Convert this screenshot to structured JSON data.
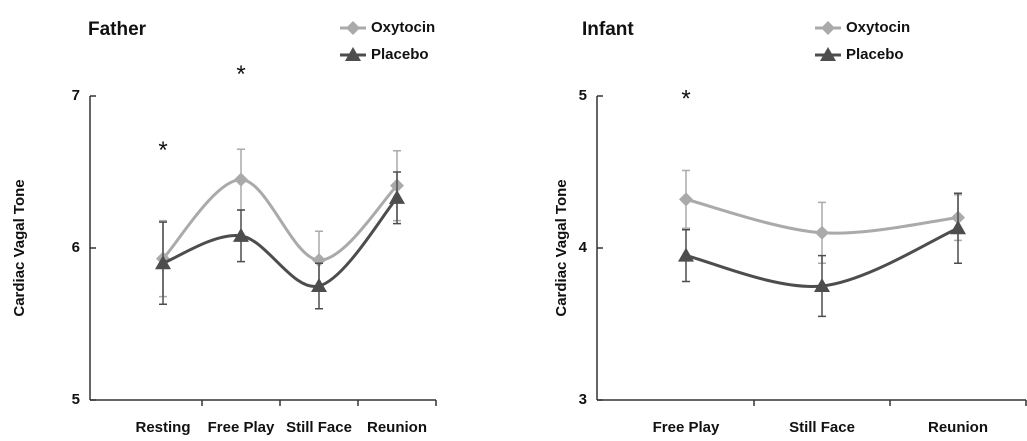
{
  "chart_data": [
    {
      "type": "line",
      "title": "Father",
      "y_label": "Cardiac Vagal Tone",
      "categories": [
        "Resting",
        "Free Play",
        "Still Face",
        "Reunion"
      ],
      "series": [
        {
          "name": "Oxytocin",
          "color": "#aaaaaa",
          "marker": "diamond",
          "values": [
            5.93,
            6.45,
            5.92,
            6.41
          ],
          "errors": [
            0.25,
            0.2,
            0.19,
            0.23
          ]
        },
        {
          "name": "Placebo",
          "color": "#4d4d4d",
          "marker": "triangle",
          "values": [
            5.9,
            6.08,
            5.75,
            6.33
          ],
          "errors": [
            0.27,
            0.17,
            0.15,
            0.17
          ]
        }
      ],
      "ylim": [
        5,
        7
      ],
      "yticks": [
        5,
        6,
        7
      ],
      "legend": "upper right",
      "smooth": true,
      "annotations": [
        {
          "text": "*",
          "category": "Resting",
          "y": 6.66
        },
        {
          "text": "*",
          "category": "Free Play",
          "y": 7.16
        }
      ]
    },
    {
      "type": "line",
      "title": "Infant",
      "y_label": "Cardiac Vagal Tone",
      "categories": [
        "Free Play",
        "Still Face",
        "Reunion"
      ],
      "series": [
        {
          "name": "Oxytocin",
          "color": "#aaaaaa",
          "marker": "diamond",
          "values": [
            4.32,
            4.1,
            4.2
          ],
          "errors": [
            0.19,
            0.2,
            0.15
          ]
        },
        {
          "name": "Placebo",
          "color": "#4d4d4d",
          "marker": "triangle",
          "values": [
            3.95,
            3.75,
            4.13
          ],
          "errors": [
            0.17,
            0.2,
            0.23
          ]
        }
      ],
      "ylim": [
        3,
        5
      ],
      "yticks": [
        3,
        4,
        5
      ],
      "legend": "upper right",
      "smooth": true,
      "annotations": [
        {
          "text": "*",
          "category": "Free Play",
          "y": 5.0
        }
      ]
    }
  ]
}
